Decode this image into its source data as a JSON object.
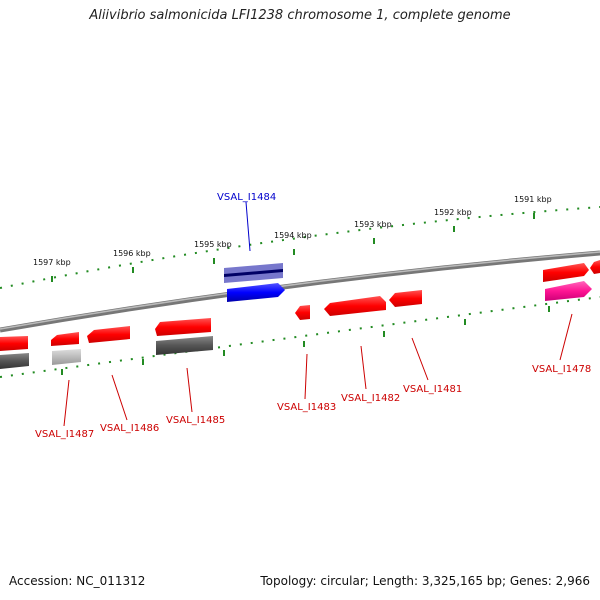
{
  "title": "Aliivibrio salmonicida LFI1238 chromosome 1, complete genome",
  "footer": {
    "accession": "Accession: NC_011312",
    "summary": "Topology: circular; Length: 3,325,165 bp; Genes: 2,966"
  },
  "kbp_labels": [
    "1597 kbp",
    "1596 kbp",
    "1595 kbp",
    "1594 kbp",
    "1593 kbp",
    "1592 kbp",
    "1591 kbp"
  ],
  "gene_labels": {
    "i1484": "VSAL_I1484",
    "i1487": "VSAL_I1487",
    "i1486": "VSAL_I1486",
    "i1485": "VSAL_I1485",
    "i1483": "VSAL_I1483",
    "i1482": "VSAL_I1482",
    "i1481": "VSAL_I1481",
    "i1478": "VSAL_I1478"
  },
  "colors": {
    "red_gene": "#ff0000",
    "blue_gene": "#0000ff",
    "gray_gene": "#555555",
    "pink_gene": "#ff1493",
    "tick_green": "#228b22",
    "backbone": "#777777",
    "label_red": "#cc0000",
    "label_blue": "#0000cc"
  }
}
